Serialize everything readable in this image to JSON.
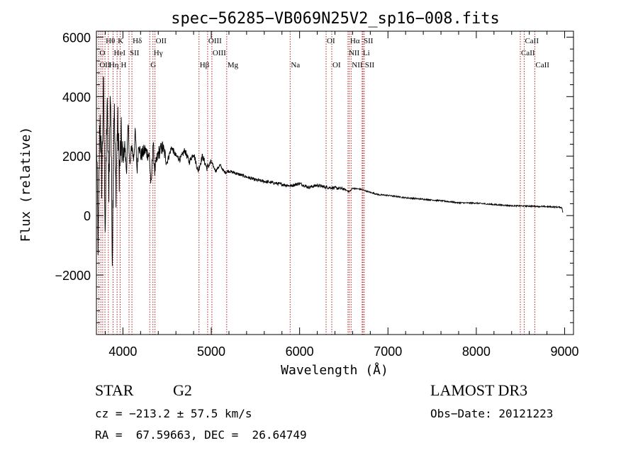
{
  "chart_data": {
    "type": "line",
    "title": "spec−56285−VB069N25V2_sp16−008.fits",
    "xlabel": "Wavelength (Å)",
    "ylabel": "Flux (relative)",
    "xlim": [
      3700,
      9100
    ],
    "ylim": [
      -4000,
      6200
    ],
    "x_ticks": [
      {
        "value": 4000,
        "label": "4000"
      },
      {
        "value": 5000,
        "label": "5000"
      },
      {
        "value": 6000,
        "label": "6000"
      },
      {
        "value": 7000,
        "label": "7000"
      },
      {
        "value": 8000,
        "label": "8000"
      },
      {
        "value": 9000,
        "label": "9000"
      }
    ],
    "y_ticks": [
      {
        "value": -2000,
        "label": "−2000"
      },
      {
        "value": 0,
        "label": "0"
      },
      {
        "value": 2000,
        "label": "2000"
      },
      {
        "value": 4000,
        "label": "4000"
      },
      {
        "value": 6000,
        "label": "6000"
      }
    ],
    "series": [
      {
        "name": "flux",
        "color": "#000000",
        "x": [
          3700,
          3720,
          3740,
          3760,
          3780,
          3800,
          3820,
          3840,
          3860,
          3880,
          3900,
          3920,
          3940,
          3960,
          3980,
          4000,
          4020,
          4040,
          4060,
          4080,
          4100,
          4120,
          4140,
          4160,
          4180,
          4200,
          4250,
          4300,
          4320,
          4340,
          4360,
          4400,
          4450,
          4500,
          4550,
          4600,
          4650,
          4700,
          4750,
          4800,
          4850,
          4861,
          4900,
          4950,
          5000,
          5050,
          5100,
          5150,
          5200,
          5300,
          5400,
          5500,
          5600,
          5700,
          5800,
          5900,
          6000,
          6100,
          6200,
          6300,
          6400,
          6500,
          6563,
          6600,
          6700,
          6800,
          6900,
          7000,
          7200,
          7400,
          7600,
          7800,
          8000,
          8200,
          8400,
          8600,
          8800,
          8950,
          8970,
          8980
        ],
        "y": [
          2800,
          -1200,
          3500,
          1200,
          4300,
          -500,
          3800,
          900,
          4400,
          -1300,
          3900,
          800,
          3200,
          1400,
          2600,
          1800,
          2400,
          1500,
          3000,
          1600,
          2400,
          1900,
          2800,
          1500,
          2500,
          2000,
          2200,
          2000,
          900,
          2500,
          1500,
          2100,
          2300,
          1800,
          2300,
          2000,
          1900,
          2200,
          1800,
          2100,
          1500,
          1600,
          2000,
          1600,
          1800,
          1500,
          1700,
          1450,
          1500,
          1400,
          1300,
          1200,
          1150,
          1100,
          1050,
          1000,
          1080,
          950,
          1020,
          950,
          930,
          900,
          800,
          920,
          880,
          780,
          700,
          680,
          600,
          550,
          500,
          430,
          420,
          370,
          330,
          320,
          300,
          280,
          260,
          100
        ]
      }
    ],
    "annotations": [
      {
        "text": "Hθ",
        "x": 3797,
        "row": 0
      },
      {
        "text": "K",
        "x": 3934,
        "row": 0
      },
      {
        "text": "Hδ",
        "x": 4102,
        "row": 0
      },
      {
        "text": "OII",
        "x": 4363,
        "row": 0
      },
      {
        "text": "OIII",
        "x": 4959,
        "row": 0
      },
      {
        "text": "OI",
        "x": 6300,
        "row": 0
      },
      {
        "text": "Hα",
        "x": 6563,
        "row": 0
      },
      {
        "text": "SII",
        "x": 6717,
        "row": 0
      },
      {
        "text": "CaII",
        "x": 8542,
        "row": 0
      },
      {
        "text": "O",
        "x": 3727,
        "row": 1
      },
      {
        "text": "HeI",
        "x": 3889,
        "row": 1
      },
      {
        "text": "SII",
        "x": 4069,
        "row": 1
      },
      {
        "text": "Hγ",
        "x": 4340,
        "row": 1
      },
      {
        "text": "OIII",
        "x": 5007,
        "row": 1
      },
      {
        "text": "Na",
        "x": 5893,
        "row": 2
      },
      {
        "text": "NII",
        "x": 6548,
        "row": 1
      },
      {
        "text": "Li",
        "x": 6708,
        "row": 1
      },
      {
        "text": "CaII",
        "x": 8498,
        "row": 1
      },
      {
        "text": "OII",
        "x": 3727,
        "row": 2
      },
      {
        "text": "Hη",
        "x": 3835,
        "row": 2
      },
      {
        "text": "H",
        "x": 3969,
        "row": 2
      },
      {
        "text": "G",
        "x": 4304,
        "row": 2
      },
      {
        "text": "Hβ",
        "x": 4861,
        "row": 2
      },
      {
        "text": "Mg",
        "x": 5175,
        "row": 2
      },
      {
        "text": "OI",
        "x": 6364,
        "row": 2
      },
      {
        "text": "NII",
        "x": 6583,
        "row": 2
      },
      {
        "text": "SII",
        "x": 6731,
        "row": 2
      },
      {
        "text": "CaII",
        "x": 8662,
        "row": 2
      }
    ],
    "line_markers": [
      3727,
      3750,
      3771,
      3797,
      3835,
      3889,
      3934,
      3969,
      4069,
      4102,
      4304,
      4340,
      4363,
      4861,
      4959,
      5007,
      5175,
      5893,
      6300,
      6364,
      6548,
      6563,
      6583,
      6708,
      6717,
      6731,
      8498,
      8542,
      8662
    ],
    "marker_color": "#b22222"
  },
  "info": {
    "class": "STAR",
    "subclass": "G2",
    "survey": "LAMOST DR3",
    "cz": "cz = −213.2 ± 57.5 km/s",
    "obs_date": "Obs−Date: 20121223",
    "coords": "RA =  67.59663, DEC =  26.64749"
  }
}
